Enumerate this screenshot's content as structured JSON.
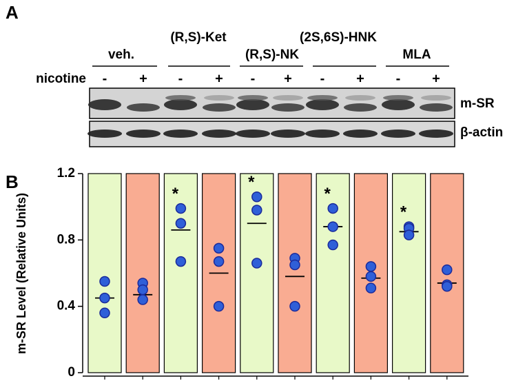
{
  "panels": [
    "A",
    "B"
  ],
  "blot": {
    "groups": [
      "veh.",
      "(R,S)-Ket",
      "(R,S)-NK",
      "(2S,6S)-HNK",
      "MLA"
    ],
    "treatment": "nicotine",
    "signs": [
      "-",
      "+",
      "-",
      "+",
      "-",
      "+",
      "-",
      "+",
      "-",
      "+"
    ],
    "bands": [
      "m-SR",
      "β-actin"
    ]
  },
  "chart_data": {
    "type": "dot",
    "y_label": "m-SR Level (Relative Units)",
    "categories": [
      null,
      null,
      null,
      null,
      null,
      null,
      null,
      null,
      null,
      null
    ],
    "bar_colors": [
      "#e8f9c8",
      "#f9ac92",
      "#e8f9c8",
      "#f9ac92",
      "#e8f9c8",
      "#f9ac92",
      "#e8f9c8",
      "#f9ac92",
      "#e8f9c8",
      "#f9ac92"
    ],
    "point_color": "#2f5fd8",
    "means": [
      0.45,
      0.47,
      0.86,
      0.6,
      0.9,
      0.58,
      0.88,
      0.57,
      0.85,
      0.54
    ],
    "points": [
      [
        0.55,
        0.45,
        0.36
      ],
      [
        0.54,
        0.5,
        0.44
      ],
      [
        0.99,
        0.9,
        0.67
      ],
      [
        0.75,
        0.67,
        0.4
      ],
      [
        1.06,
        0.98,
        0.66
      ],
      [
        0.69,
        0.65,
        0.4
      ],
      [
        0.99,
        0.88,
        0.77
      ],
      [
        0.64,
        0.58,
        0.51
      ],
      [
        0.88,
        0.87,
        0.83
      ],
      [
        0.62,
        0.53,
        0.52
      ]
    ],
    "markers": [
      null,
      null,
      "*",
      null,
      "*",
      null,
      "*",
      null,
      "*",
      null
    ],
    "ylim": [
      0,
      1.2
    ],
    "yticks": [
      0,
      0.4,
      0.8,
      1.2
    ]
  }
}
